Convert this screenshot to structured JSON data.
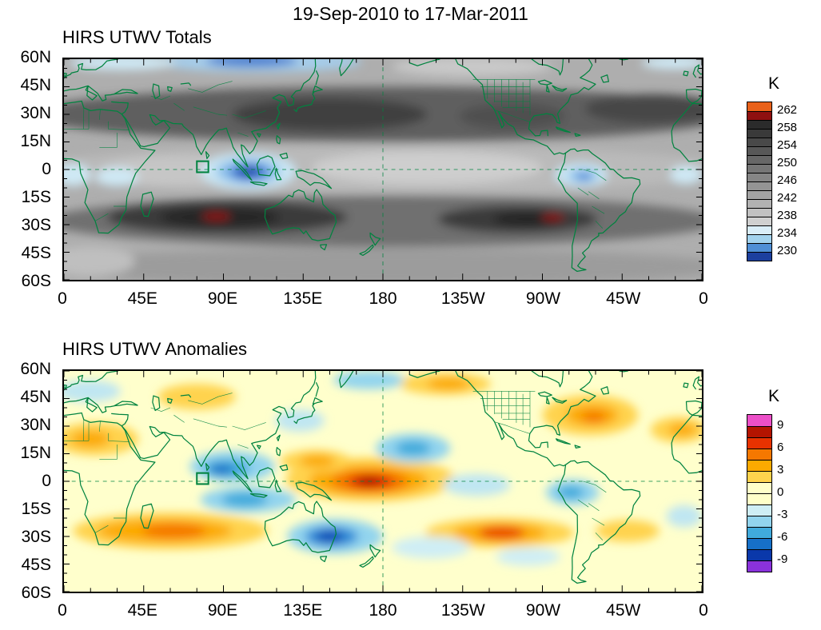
{
  "title": "19-Sep-2010 to 17-Mar-2011",
  "panels": [
    {
      "title": "HIRS UTWV Totals",
      "lat_ticks": [
        "60N",
        "45N",
        "30N",
        "15N",
        "0",
        "15S",
        "30S",
        "45S",
        "60S"
      ],
      "lon_ticks": [
        "0",
        "45E",
        "90E",
        "135E",
        "180",
        "135W",
        "90W",
        "45W",
        "0"
      ],
      "colorbar": {
        "unit": "K",
        "labels": [
          "262",
          "258",
          "254",
          "250",
          "246",
          "242",
          "238",
          "234",
          "230"
        ],
        "colors": [
          "#e8611a",
          "#8f1010",
          "#2b2b2b",
          "#3a3a3a",
          "#494949",
          "#585858",
          "#676767",
          "#767676",
          "#858585",
          "#949494",
          "#a3a3a3",
          "#b2b2b2",
          "#c1c1c1",
          "#d0d0d0",
          "#daeef8",
          "#a3d3ee",
          "#4f8fd6",
          "#1c3f9e"
        ]
      }
    },
    {
      "title": "HIRS UTWV Anomalies",
      "lat_ticks": [
        "60N",
        "45N",
        "30N",
        "15N",
        "0",
        "15S",
        "30S",
        "45S",
        "60S"
      ],
      "lon_ticks": [
        "0",
        "45E",
        "90E",
        "135E",
        "180",
        "135W",
        "90W",
        "45W",
        "0"
      ],
      "colorbar": {
        "unit": "K",
        "labels": [
          "9",
          "6",
          "3",
          "0",
          "-3",
          "-6",
          "-9"
        ],
        "colors": [
          "#ec4fc8",
          "#b41400",
          "#e83200",
          "#f57800",
          "#fcaa00",
          "#ffd34d",
          "#ffffc8",
          "#ffffc8",
          "#cfeef5",
          "#92d4ee",
          "#40aadc",
          "#1670c8",
          "#0a38aa",
          "#8a32dc"
        ]
      }
    }
  ],
  "chart_data": [
    {
      "type": "heatmap",
      "title": "HIRS UTWV Totals",
      "unit": "K",
      "projection": "cylindrical equidistant, 60S-60N, 0E-360E (180 centered)",
      "x_ticks": [
        "0",
        "45E",
        "90E",
        "135E",
        "180",
        "135W",
        "90W",
        "45W",
        "0"
      ],
      "y_ticks": [
        "60N",
        "45N",
        "30N",
        "15N",
        "0",
        "15S",
        "30S",
        "45S",
        "60S"
      ],
      "colorbar_levels": [
        230,
        234,
        238,
        242,
        246,
        250,
        254,
        258,
        262
      ],
      "value_range_K": [
        228,
        264
      ],
      "coastline_color": "#00833f",
      "grid": "dashed green reference lines at 180 longitude and the equator; small green box near 78E,0N",
      "features": [
        {
          "region": "Maritime Continent / Indonesia (90E-130E, equator)",
          "value_K": 232,
          "note": "deep blue minimum"
        },
        {
          "region": "equatorial South America (~70W)",
          "value_K": 236,
          "note": "light blue minimum"
        },
        {
          "region": "subtropical bands ~20-35N and ~20-35S",
          "value_K": 252,
          "note": "dark gray maxima"
        },
        {
          "region": "~85E, 25S (south Indian Ocean)",
          "value_K": 259,
          "note": "dark red local maximum"
        },
        {
          "region": "~85W, 25S (southeast Pacific)",
          "value_K": 259,
          "note": "dark red local maximum"
        },
        {
          "region": "high northern latitudes 55-60N, 60-130E",
          "value_K": 233,
          "note": "blue band along top edge"
        }
      ]
    },
    {
      "type": "heatmap",
      "title": "HIRS UTWV Anomalies",
      "unit": "K",
      "projection": "cylindrical equidistant, 60S-60N, 0E-360E (180 centered)",
      "x_ticks": [
        "0",
        "45E",
        "90E",
        "135E",
        "180",
        "135W",
        "90W",
        "45W",
        "0"
      ],
      "y_ticks": [
        "60N",
        "45N",
        "30N",
        "15N",
        "0",
        "15S",
        "30S",
        "45S",
        "60S"
      ],
      "colorbar_levels": [
        -9,
        -6,
        -3,
        0,
        3,
        6,
        9
      ],
      "value_range_K": [
        -10,
        10
      ],
      "coastline_color": "#00833f",
      "grid": "dashed green reference lines at 180 longitude and the equator; small green box near 78E,0N",
      "features": [
        {
          "region": "central equatorial Pacific near 180",
          "value_K": 8,
          "note": "dark red positive maximum"
        },
        {
          "region": "Bay of Bengal / Southeast Asia (~90E, 5-15N)",
          "value_K": -5,
          "note": "blue negative core"
        },
        {
          "region": "south of Indonesia / NW Australia (~100E, 10S)",
          "value_K": -4
        },
        {
          "region": "Tasman Sea SE of Australia (~155E, 30S)",
          "value_K": -6,
          "note": "deep blue core"
        },
        {
          "region": "central North Pacific (~165W, 18N)",
          "value_K": -4
        },
        {
          "region": "subtropical south Indian Ocean (20-100E, ~27S)",
          "value_K": 4,
          "note": "orange band"
        },
        {
          "region": "southeast Pacific (~115W, 28S)",
          "value_K": 5,
          "note": "orange/red-orange band"
        },
        {
          "region": "western tropical South America (~75W, 5S)",
          "value_K": -4
        },
        {
          "region": "eastern North America / west Atlantic (~65W, 35N)",
          "value_K": 4
        },
        {
          "region": "background elsewhere",
          "value_K": 0,
          "note": "pale yellow near zero"
        }
      ]
    }
  ]
}
